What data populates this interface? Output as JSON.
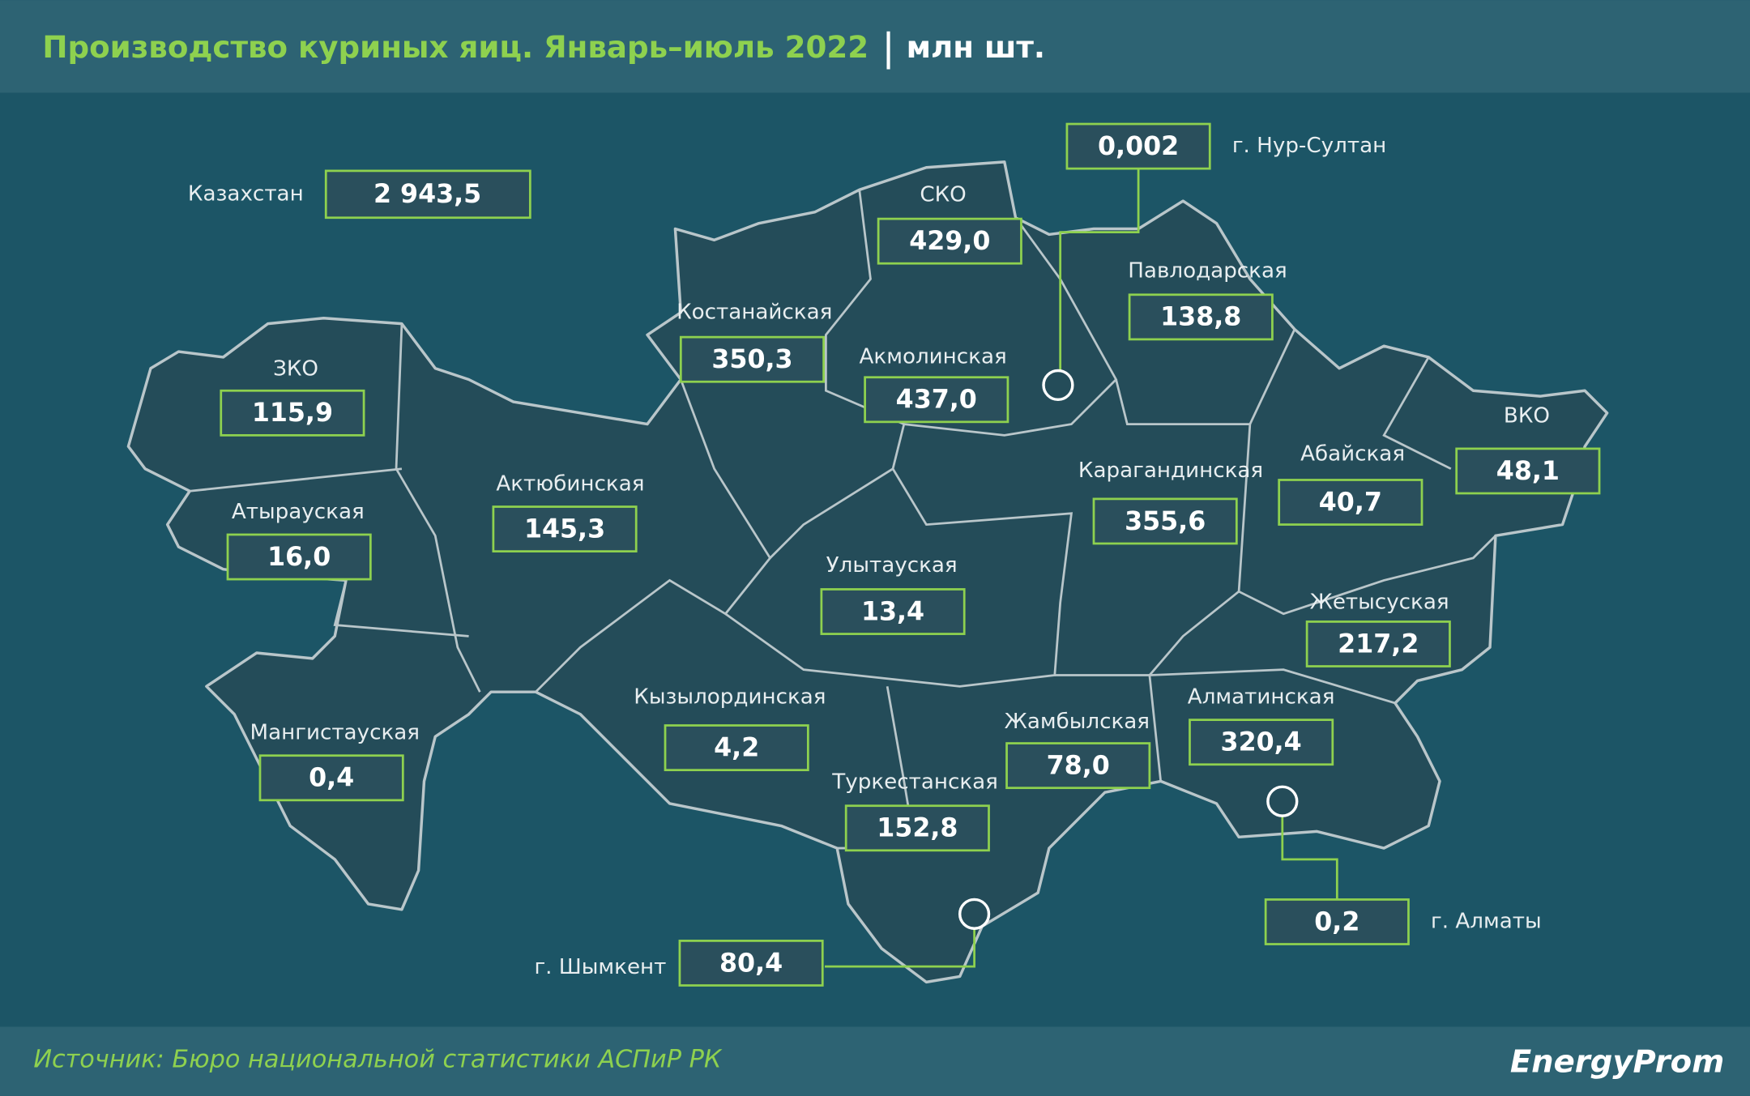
{
  "header": {
    "title": "Производство куриных яиц. Январь–июль 2022",
    "unit": "млн шт."
  },
  "total": {
    "name": "Казахстан",
    "value": "2 943,5"
  },
  "regions": [
    {
      "name": "ЗКО",
      "value": "115,9"
    },
    {
      "name": "Атырауская",
      "value": "16,0"
    },
    {
      "name": "Мангистауская",
      "value": "0,4"
    },
    {
      "name": "Актюбинская",
      "value": "145,3"
    },
    {
      "name": "Костанайская",
      "value": "350,3"
    },
    {
      "name": "СКО",
      "value": "429,0"
    },
    {
      "name": "Акмолинская",
      "value": "437,0"
    },
    {
      "name": "Павлодарская",
      "value": "138,8"
    },
    {
      "name": "Карагандинская",
      "value": "355,6"
    },
    {
      "name": "Абайская",
      "value": "40,7"
    },
    {
      "name": "ВКО",
      "value": "48,1"
    },
    {
      "name": "Улытауская",
      "value": "13,4"
    },
    {
      "name": "Жетысуская",
      "value": "217,2"
    },
    {
      "name": "Кызылординская",
      "value": "4,2"
    },
    {
      "name": "Жамбылская",
      "value": "78,0"
    },
    {
      "name": "Алматинская",
      "value": "320,4"
    },
    {
      "name": "Туркестанская",
      "value": "152,8"
    }
  ],
  "cities": [
    {
      "name": "г. Нур-Султан",
      "value": "0,002"
    },
    {
      "name": "г. Алматы",
      "value": "0,2"
    },
    {
      "name": "г. Шымкент",
      "value": "80,4"
    }
  ],
  "footer": {
    "source": "Источник: Бюро национальной статистики АСПиР РК",
    "logo": "EnergyProm"
  }
}
